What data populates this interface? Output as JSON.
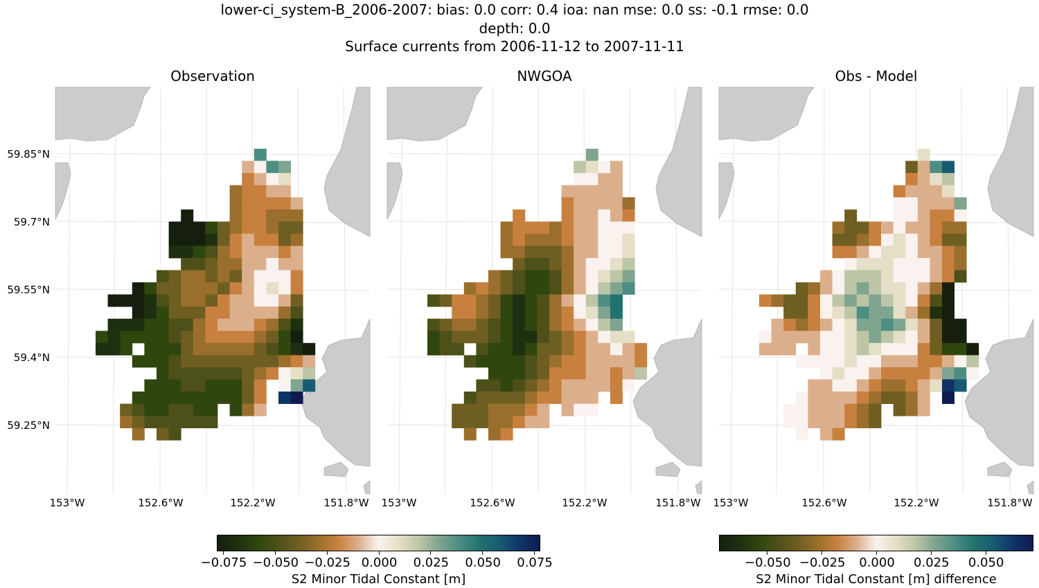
{
  "figure": {
    "title_lines": [
      "lower-ci_system-B_2006-2007: bias: 0.0  corr: 0.4  ioa: nan  mse: 0.0  ss: -0.1  rmse: 0.0",
      "depth: 0.0",
      "Surface currents from 2006-11-12 to 2007-11-11"
    ]
  },
  "axes": {
    "lat_labels": [
      "59.85°N",
      "59.7°N",
      "59.55°N",
      "59.4°N",
      "59.25°N"
    ],
    "lon_labels": [
      "153°W",
      "152.6°W",
      "152.2°W",
      "151.8°W"
    ]
  },
  "colorbars": [
    {
      "label": "S2 Minor Tidal Constant [m]",
      "vmin": -0.078,
      "vmax": 0.078,
      "ticks": [
        {
          "v": -0.075,
          "t": "−0.075"
        },
        {
          "v": -0.05,
          "t": "−0.050"
        },
        {
          "v": -0.025,
          "t": "−0.025"
        },
        {
          "v": 0,
          "t": "0.000"
        },
        {
          "v": 0.025,
          "t": "0.025"
        },
        {
          "v": 0.05,
          "t": "0.050"
        },
        {
          "v": 0.075,
          "t": "0.075"
        }
      ]
    },
    {
      "label": "S2 Minor Tidal Constant [m] difference",
      "vmin": -0.072,
      "vmax": 0.072,
      "ticks": [
        {
          "v": -0.05,
          "t": "−0.050"
        },
        {
          "v": -0.025,
          "t": "−0.025"
        },
        {
          "v": 0,
          "t": "0.000"
        },
        {
          "v": 0.025,
          "t": "0.025"
        },
        {
          "v": 0.05,
          "t": "0.050"
        }
      ]
    }
  ],
  "colormap": [
    "#161f0e",
    "#1f3010",
    "#30460f",
    "#4d5019",
    "#6e5e22",
    "#9a6e2c",
    "#c8803f",
    "#dcaf8c",
    "#f9f2ee",
    "#e4dfc6",
    "#bcc6a6",
    "#7fa48f",
    "#4d8d83",
    "#22726f",
    "#185a72",
    "#0f3566",
    "#101b52"
  ],
  "land_color": "#cccccc",
  "chart_data": {
    "type": "heatmap",
    "encoding": "each row string is one latitude row (north to south), one char per longitude column; '.' = no data; 'a'..'q' = levels -8..+8, value = level * level_step",
    "panels": [
      {
        "title": "Observation",
        "colorbar": 0,
        "level_step": 0.01,
        "rows": [
          ".............m....",
          "............himl..",
          "............ghij..",
          "...........fgghh..",
          "...........fggggh.",
          ".......a...fggfff.",
          "......aaacefggfee.",
          "......aaabeghggef.",
          "......bbcdfghhhgh.",
          ".......ddeffhhihh.",
          ".....deffefehiiig.",
          "...aceefffeghijig.",
          ".aaabdeffeghhiihe.",
          "...abceeegghhhhfd.",
          ".bbbccddfghhhgfdb.",
          "cbccccdefggggfeca.",
          "bbc.cccefffffedcba",
          "...cccdeeeeeeeefgh",
          ".....cddddddefgijk",
          "....cccddccceg ilo.",
          "...ccccccccceg.pq.",
          "..edccddcc.cfh....",
          "..fedddddd........",
          "...f.ed..........."
        ]
      },
      {
        "title": "NWGOA",
        "colorbar": 0,
        "level_step": 0.01,
        "rows": [
          ".............l....",
          "............kjih..",
          "............iihh..",
          "...........hhhhh..",
          "...........ghhhhf.",
          ".......g...ghhihg.",
          "......fgggfghhiii.",
          "......fgfffghhiij.",
          "......ffeeefhhiij.",
          ".......eddefhiijk.",
          ".....fedccdfhijkl.",
          "...fgfedccdfhiklm.",
          "deggfecbcdfhikmn..",
          "..ggfecbcdfgijln..",
          "deffedcbcdfghikl..",
          "cdeeedcbbdefghijj.",
          "cdd.dccbceefghhihg",
          "...dccccdefgghhhhg",
          ".....cccdeggghhghk",
          "....ddcdefghhhhgi.",
          "...deeeefgghhh.g..",
          "..eeefffgh.hii....",
          "..eeeffghh........",
          "...f.fg..........."
        ]
      },
      {
        "title": "Obs - Model",
        "colorbar": 1,
        "level_step": 0.009,
        "rows": [
          ".............j....",
          "............ehmo..",
          "............ghjk..",
          "...........ghhhj..",
          "...........iihhhl.",
          ".......e...iihggi.",
          "......feeghihhgff.",
          "......eefgijihgee.",
          "......gghijjihhgf.",
          ".......ijjjiiihgf.",
          ".....hikkkjiiihgd.",
          "...efhiklkjjihfa..",
          "gfeegiklklkjigda..",
          "..eegijkmlljhfba..",
          ".hgfghijllmljheaa.",
          "ihhhhiijklkjiheaa.",
          "hhh.hiijkjiiigecca",
          "...iiiijiihhhgghik",
          ".....ijiihgggghlmi",
          "....hhiihgffghjpo.",
          "...ihhhhgfeefh.q..",
          "..iihhhgfe.efh....",
          "..iihhhgfe........",
          "...i.hg..........."
        ]
      }
    ]
  }
}
